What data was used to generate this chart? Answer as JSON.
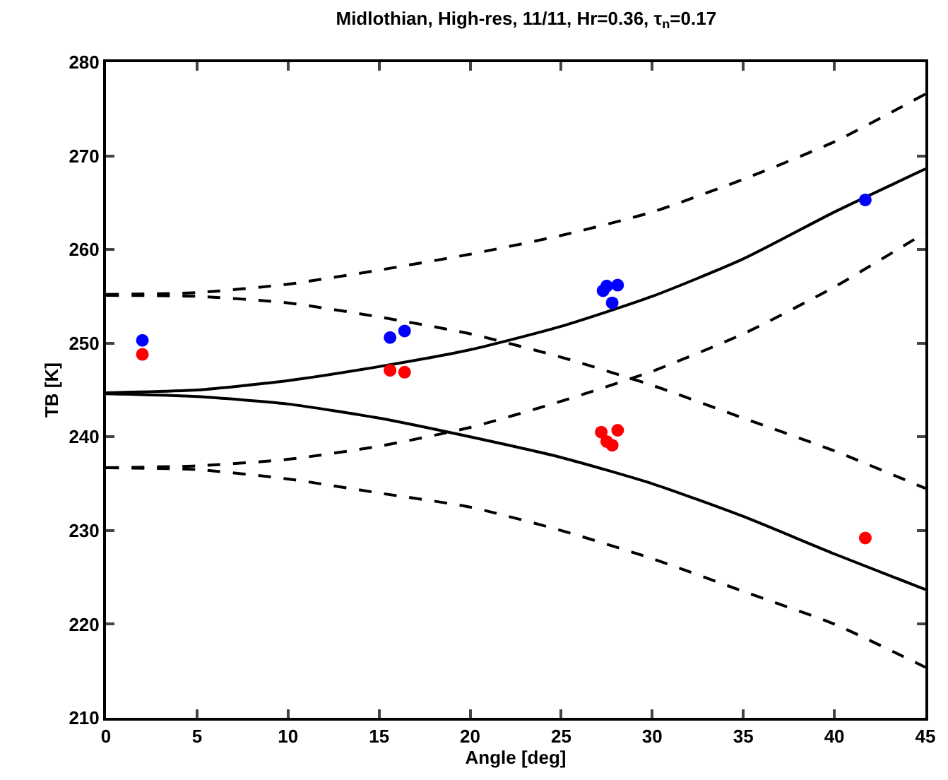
{
  "chart_data": {
    "type": "scatter",
    "title": "Midlothian, High-res, 11/11, Hr=0.36, τ$_{n}$=0.17",
    "xlabel": "Angle [deg]",
    "ylabel": "TB [K]",
    "xlim": [
      0,
      45
    ],
    "xticks": [
      0,
      5,
      10,
      15,
      20,
      25,
      30,
      35,
      40,
      45
    ],
    "ylim": [
      210,
      280
    ],
    "yticks": [
      210,
      220,
      230,
      240,
      250,
      260,
      270,
      280
    ],
    "grid": false,
    "legend": false,
    "series": [
      {
        "type": "line",
        "line_style": "solid",
        "marker": "none",
        "color": "#000000",
        "x": [
          0,
          5,
          10,
          15,
          20,
          25,
          30,
          35,
          40,
          45
        ],
        "values": [
          244.7,
          245.0,
          246.0,
          247.5,
          249.3,
          251.8,
          255.0,
          259.0,
          264.0,
          268.6
        ]
      },
      {
        "type": "line",
        "line_style": "solid",
        "marker": "none",
        "color": "#000000",
        "x": [
          0,
          5,
          10,
          15,
          20,
          25,
          30,
          35,
          40,
          45
        ],
        "values": [
          244.6,
          244.3,
          243.5,
          242.0,
          240.0,
          237.8,
          235.0,
          231.5,
          227.5,
          223.7
        ]
      },
      {
        "type": "line",
        "line_style": "dashed",
        "marker": "none",
        "color": "#000000",
        "x": [
          0,
          5,
          10,
          15,
          20,
          25,
          30,
          35,
          40,
          45
        ],
        "values": [
          255.2,
          255.4,
          256.3,
          257.8,
          259.5,
          261.5,
          264.0,
          267.5,
          271.5,
          276.6
        ]
      },
      {
        "type": "line",
        "line_style": "dashed",
        "marker": "none",
        "color": "#000000",
        "x": [
          0,
          5,
          10,
          15,
          20,
          25,
          30,
          35,
          40,
          45
        ],
        "values": [
          255.1,
          255.0,
          254.3,
          252.8,
          251.0,
          248.5,
          245.5,
          242.0,
          238.5,
          234.5
        ]
      },
      {
        "type": "line",
        "line_style": "dashed",
        "marker": "none",
        "color": "#000000",
        "x": [
          0,
          5,
          10,
          15,
          20,
          25,
          30,
          35,
          40,
          45
        ],
        "values": [
          236.7,
          236.9,
          237.6,
          239.0,
          241.0,
          243.8,
          247.0,
          251.0,
          256.0,
          261.8
        ]
      },
      {
        "type": "line",
        "line_style": "dashed",
        "marker": "none",
        "color": "#000000",
        "x": [
          0,
          5,
          10,
          15,
          20,
          25,
          30,
          35,
          40,
          45
        ],
        "values": [
          236.7,
          236.5,
          235.5,
          234.0,
          232.5,
          230.0,
          227.0,
          223.5,
          220.0,
          215.4
        ]
      },
      {
        "marker": "circle",
        "color": "#0000ff",
        "x": [
          2.0,
          15.6,
          16.4,
          27.3,
          27.5,
          28.1,
          27.8,
          41.7
        ],
        "values": [
          250.3,
          250.6,
          251.3,
          255.6,
          256.1,
          256.2,
          254.3,
          265.3
        ]
      },
      {
        "marker": "circle",
        "color": "#ff0000",
        "x": [
          2.0,
          15.6,
          16.4,
          27.2,
          28.1,
          27.5,
          27.8,
          41.7
        ],
        "values": [
          248.8,
          247.1,
          246.9,
          240.5,
          240.7,
          239.5,
          239.1,
          229.2
        ]
      }
    ]
  }
}
